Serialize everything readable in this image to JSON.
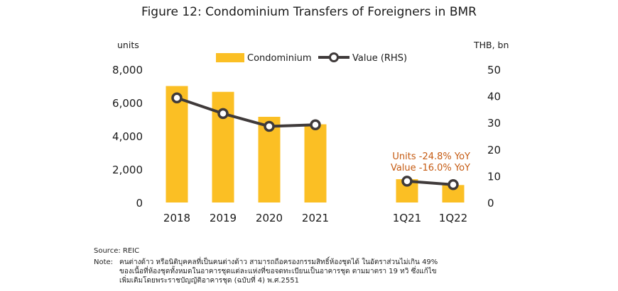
{
  "chart_data": {
    "type": "bar+line",
    "title": "Figure 12: Condominium Transfers of Foreigners in BMR",
    "categories": [
      "2018",
      "2019",
      "2020",
      "2021",
      "1Q21",
      "1Q22"
    ],
    "left_axis": {
      "label": "units",
      "ylim": [
        0,
        8000
      ],
      "ticks": [
        0,
        2000,
        4000,
        6000,
        8000
      ],
      "tick_labels": [
        "0",
        "2,000",
        "4,000",
        "6,000",
        "8,000"
      ]
    },
    "right_axis": {
      "label": "THB, bn",
      "ylim": [
        0,
        50
      ],
      "ticks": [
        0,
        10,
        20,
        30,
        40,
        50
      ],
      "tick_labels": [
        "0",
        "10",
        "20",
        "30",
        "40",
        "50"
      ]
    },
    "series": [
      {
        "name": "Condominium",
        "type": "bar",
        "axis": "left",
        "color": "#fbbf24",
        "values": [
          7000,
          6650,
          5150,
          4700,
          1400,
          1050
        ]
      },
      {
        "name": "Value (RHS)",
        "type": "line",
        "axis": "right",
        "color": "#3f3a3a",
        "segments": [
          [
            0,
            3
          ],
          [
            4,
            5
          ]
        ],
        "values": [
          39.3,
          33.4,
          28.6,
          29.2,
          8.0,
          6.7
        ]
      }
    ],
    "legend_position": "top-center",
    "annotations": [
      {
        "text": "Units  -24.8% YoY"
      },
      {
        "text": "Value -16.0% YoY"
      }
    ],
    "grid": false
  },
  "footer": {
    "source": "Source: REIC",
    "note_label": "Note:",
    "note_lines": [
      "คนต่างด้าว หรือนิติบุคคลที่เป็นคนต่างด้าว สามารถถือครองกรรมสิทธิ์ห้องชุดได้ ในอัตราส่วนไม่เกิน 49%",
      "ของเนื้อที่ห้องชุดทั้งหมดในอาคารชุดแต่ละแห่งที่ขอจดทะเบียนเป็นอาคารชุด ตามมาตรา 19 ทวิ ซึ่งแก้ไข",
      "เพิ่มเติมโดยพระราชบัญญัติอาคารชุด (ฉบับที่ 4) พ.ศ.2551"
    ]
  }
}
